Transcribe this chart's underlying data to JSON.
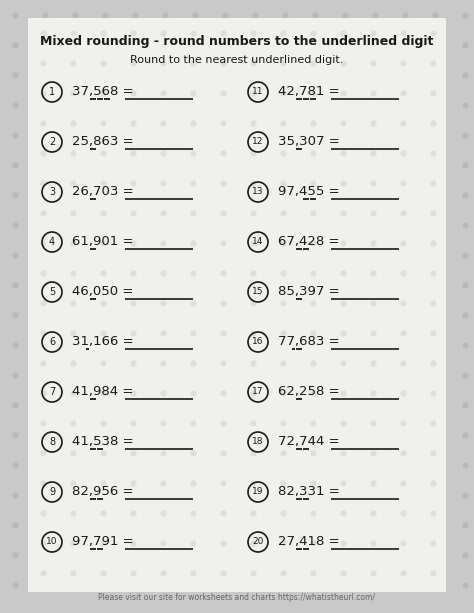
{
  "title": "Mixed rounding - round numbers to the underlined digit",
  "subtitle": "Round to the nearest underlined digit.",
  "footer": "Please visit our site for worksheets and charts https://whatistheurl.com/",
  "bg_outer": "#c9c9c9",
  "bg_inner": "#f0f0ec",
  "dot_outer": "#b5b5b5",
  "dot_inner": "#ddddd8",
  "left_items": [
    {
      "num": 1,
      "text": "37,568",
      "underline_chars": [
        4,
        5,
        6
      ]
    },
    {
      "num": 2,
      "text": "25,863",
      "underline_chars": [
        4
      ]
    },
    {
      "num": 3,
      "text": "26,703",
      "underline_chars": [
        4
      ]
    },
    {
      "num": 4,
      "text": "61,901",
      "underline_chars": [
        4
      ]
    },
    {
      "num": 5,
      "text": "46,050",
      "underline_chars": [
        4
      ]
    },
    {
      "num": 6,
      "text": "31,166",
      "underline_chars": [
        3
      ]
    },
    {
      "num": 7,
      "text": "41,984",
      "underline_chars": [
        4
      ]
    },
    {
      "num": 8,
      "text": "41,538",
      "underline_chars": [
        4,
        5
      ]
    },
    {
      "num": 9,
      "text": "82,956",
      "underline_chars": [
        4,
        5
      ]
    },
    {
      "num": 10,
      "text": "97,791",
      "underline_chars": [
        4,
        5
      ]
    }
  ],
  "right_items": [
    {
      "num": 11,
      "text": "42,781",
      "underline_chars": [
        4,
        5,
        6
      ]
    },
    {
      "num": 12,
      "text": "35,307",
      "underline_chars": [
        4
      ]
    },
    {
      "num": 13,
      "text": "97,455",
      "underline_chars": [
        5,
        6
      ]
    },
    {
      "num": 14,
      "text": "67,428",
      "underline_chars": [
        4,
        5
      ]
    },
    {
      "num": 15,
      "text": "85,397",
      "underline_chars": [
        4
      ]
    },
    {
      "num": 16,
      "text": "77,683",
      "underline_chars": [
        3,
        4
      ]
    },
    {
      "num": 17,
      "text": "62,258",
      "underline_chars": [
        4
      ]
    },
    {
      "num": 18,
      "text": "72,744",
      "underline_chars": [
        4,
        5
      ]
    },
    {
      "num": 19,
      "text": "82,331",
      "underline_chars": [
        4,
        5
      ]
    },
    {
      "num": 20,
      "text": "27,418",
      "underline_chars": [
        4,
        5
      ]
    }
  ]
}
